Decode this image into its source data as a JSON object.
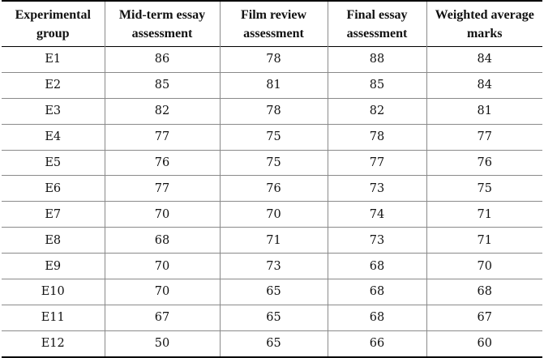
{
  "table": {
    "headers": [
      "Experimental group",
      "Mid-term essay assessment",
      "Film review assessment",
      "Final essay assessment",
      "Weighted average marks"
    ],
    "rows": [
      [
        "E1",
        "86",
        "78",
        "88",
        "84"
      ],
      [
        "E2",
        "85",
        "81",
        "85",
        "84"
      ],
      [
        "E3",
        "82",
        "78",
        "82",
        "81"
      ],
      [
        "E4",
        "77",
        "75",
        "78",
        "77"
      ],
      [
        "E5",
        "76",
        "75",
        "77",
        "76"
      ],
      [
        "E6",
        "77",
        "76",
        "73",
        "75"
      ],
      [
        "E7",
        "70",
        "70",
        "74",
        "71"
      ],
      [
        "E8",
        "68",
        "71",
        "73",
        "71"
      ],
      [
        "E9",
        "70",
        "73",
        "68",
        "70"
      ],
      [
        "E10",
        "70",
        "65",
        "68",
        "68"
      ],
      [
        "E11",
        "67",
        "65",
        "68",
        "67"
      ],
      [
        "E12",
        "50",
        "65",
        "66",
        "60"
      ]
    ]
  }
}
